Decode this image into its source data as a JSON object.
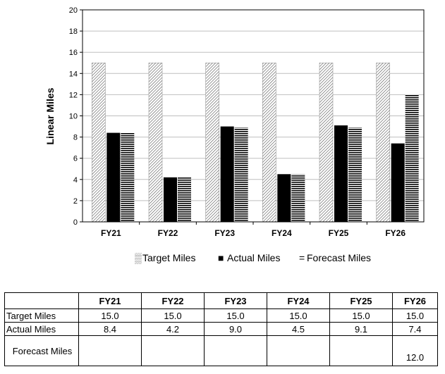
{
  "chart_data": {
    "type": "bar",
    "categories": [
      "FY21",
      "FY22",
      "FY23",
      "FY24",
      "FY25",
      "FY26"
    ],
    "series": [
      {
        "name": "Target Miles",
        "values": [
          15.0,
          15.0,
          15.0,
          15.0,
          15.0,
          15.0
        ],
        "pattern": "diagonal-hatch",
        "color": "#000000"
      },
      {
        "name": "Actual Miles",
        "values": [
          8.4,
          4.2,
          9.0,
          4.5,
          9.1,
          7.4
        ],
        "pattern": "solid",
        "color": "#000000"
      },
      {
        "name": "Forecast Miles",
        "values": [
          8.4,
          4.2,
          8.9,
          4.5,
          8.9,
          12.0
        ],
        "pattern": "horizontal-stripes",
        "color": "#000000"
      }
    ],
    "ylabel": "Linear Miles",
    "xlabel": "",
    "ylim": [
      0,
      20
    ],
    "yticks": [
      "0",
      "2",
      "4",
      "6",
      "8",
      "10",
      "12",
      "14",
      "16",
      "18",
      "20"
    ],
    "grid": true,
    "legend_position": "bottom"
  },
  "table": {
    "headers": [
      "",
      "FY21",
      "FY22",
      "FY23",
      "FY24",
      "FY25",
      "FY26"
    ],
    "rows": [
      {
        "label": "Target Miles",
        "cells": [
          "15.0",
          "15.0",
          "15.0",
          "15.0",
          "15.0",
          "15.0"
        ]
      },
      {
        "label": "Actual Miles",
        "cells": [
          "8.4",
          "4.2",
          "9.0",
          "4.5",
          "9.1",
          "7.4"
        ]
      },
      {
        "label": "Forecast Miles",
        "cells": [
          "",
          "",
          "",
          "",
          "",
          "12.0"
        ]
      }
    ]
  },
  "legend_markers": [
    "▒",
    "■",
    "="
  ]
}
